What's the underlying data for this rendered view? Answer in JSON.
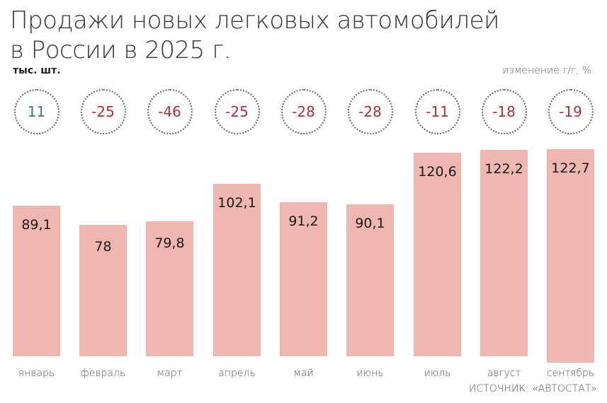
{
  "title_line1": "Продажи новых легковых автомобилей",
  "title_line2": "в России в 2025 г.",
  "unit": "тыс. шт.",
  "change_label": "изменение г/г, %",
  "source": "ИСТОЧНИК: «АВТОСТАТ»",
  "colors": {
    "bar": "#efb7b0",
    "positive": "#3a7a6a",
    "negative": "#b0303a"
  },
  "chart_data": {
    "type": "bar",
    "title": "Продажи новых легковых автомобилей в России в 2025 г.",
    "ylabel": "тыс. шт.",
    "categories": [
      "январь",
      "февраль",
      "март",
      "апрель",
      "май",
      "июнь",
      "июль",
      "август",
      "сентябрь"
    ],
    "series": [
      {
        "name": "Продажи, тыс. шт.",
        "values": [
          89.1,
          78,
          79.8,
          102.1,
          91.2,
          90.1,
          120.6,
          122.2,
          122.7
        ],
        "labels": [
          "89,1",
          "78",
          "79,8",
          "102,1",
          "91,2",
          "90,1",
          "120,6",
          "122,2",
          "122,7"
        ]
      },
      {
        "name": "изменение г/г, %",
        "values": [
          11,
          -25,
          -46,
          -25,
          -28,
          -28,
          -11,
          -18,
          -19
        ],
        "labels": [
          "11",
          "-25",
          "-46",
          "-25",
          "-28",
          "-28",
          "-11",
          "-18",
          "-19"
        ]
      }
    ],
    "source": "ИСТОЧНИК: «АВТОСТАТ»",
    "grid": false
  }
}
